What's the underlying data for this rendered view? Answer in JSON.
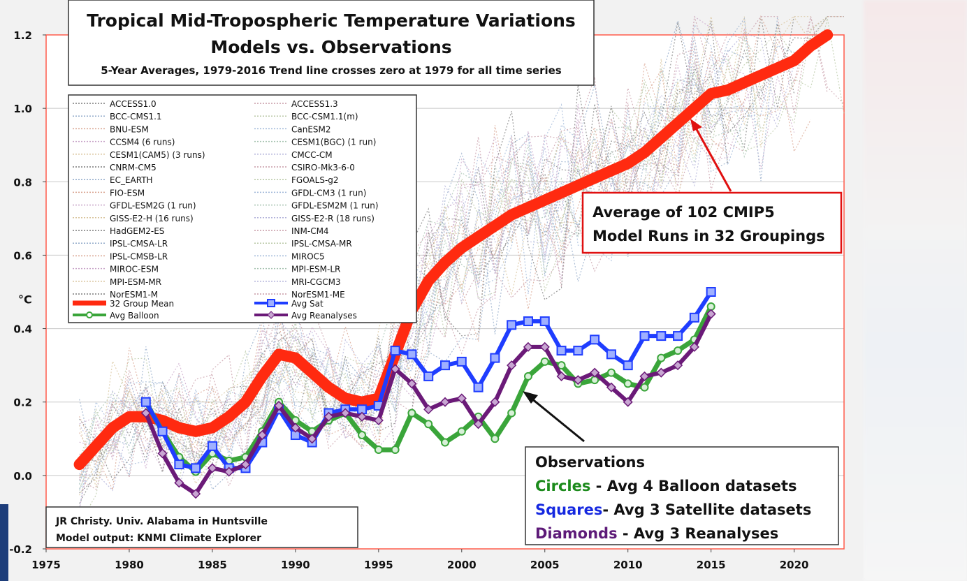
{
  "chart_data": {
    "type": "line",
    "title": "Tropical Mid-Tropospheric Temperature Variations",
    "subtitle": "Models vs. Observations",
    "note": "5-Year Averages, 1979-2016 Trend line crosses zero at 1979 for all time series",
    "ylabel": "°C",
    "xlim": [
      1975,
      2023
    ],
    "ylim": [
      -0.2,
      1.2
    ],
    "x_ticks": [
      1975,
      1980,
      1985,
      1990,
      1995,
      2000,
      2005,
      2010,
      2015,
      2020
    ],
    "y_ticks": [
      -0.2,
      0.0,
      0.2,
      0.4,
      0.6,
      0.8,
      1.0,
      1.2
    ],
    "y_tick_labels": [
      "-0.2",
      "0.0",
      "0.2",
      "0.4",
      "0.6",
      "0.8",
      "1.0",
      "1.2"
    ],
    "grid": true,
    "legend_models": [
      "ACCESS1.0",
      "ACCESS1.3",
      "BCC-CMS1.1",
      "BCC-CSM1.1(m)",
      "BNU-ESM",
      "CanESM2",
      "CCSM4 (6 runs)",
      "CESM1(BGC) (1 run)",
      "CESM1(CAM5) (3 runs)",
      "CMCC-CM",
      "CNRM-CM5",
      "CSIRO-Mk3-6-0",
      "EC_EARTH",
      "FGOALS-g2",
      "FIO-ESM",
      "GFDL-CM3 (1 run)",
      "GFDL-ESM2G (1 run)",
      "GFDL-ESM2M (1 run)",
      "GISS-E2-H (16 runs)",
      "GISS-E2-R (18 runs)",
      "HadGEM2-ES",
      "INM-CM4",
      "IPSL-CMSA-LR",
      "IPSL-CMSA-MR",
      "IPSL-CMSB-LR",
      "MIROC5",
      "MIROC-ESM",
      "MPI-ESM-LR",
      "MPI-ESM-MR",
      "MRI-CGCM3",
      "NorESM1-M",
      "NorESM1-ME"
    ],
    "model_colors": [
      "#7a7a7a",
      "#c79aa6",
      "#8fa8c8",
      "#b8c7a4",
      "#d9a38f",
      "#9fb7d9",
      "#c9a5c9",
      "#a8c4b2",
      "#d8c39a",
      "#b1b1d9"
    ],
    "series": [
      {
        "name": "32 Group Mean",
        "color": "#ff2a10",
        "marker": "none",
        "x": [
          1977,
          1978,
          1979,
          1980,
          1981,
          1982,
          1983,
          1984,
          1985,
          1986,
          1987,
          1988,
          1989,
          1990,
          1991,
          1992,
          1993,
          1994,
          1995,
          1996,
          1997,
          1998,
          1999,
          2000,
          2001,
          2002,
          2003,
          2004,
          2005,
          2006,
          2007,
          2008,
          2009,
          2010,
          2011,
          2012,
          2013,
          2014,
          2015,
          2016,
          2017,
          2018,
          2019,
          2020,
          2021,
          2022
        ],
        "values": [
          0.03,
          0.08,
          0.13,
          0.16,
          0.16,
          0.15,
          0.13,
          0.12,
          0.13,
          0.16,
          0.2,
          0.27,
          0.33,
          0.32,
          0.28,
          0.24,
          0.21,
          0.2,
          0.21,
          0.33,
          0.45,
          0.53,
          0.58,
          0.62,
          0.65,
          0.68,
          0.71,
          0.73,
          0.75,
          0.77,
          0.79,
          0.81,
          0.83,
          0.85,
          0.88,
          0.92,
          0.96,
          1.0,
          1.04,
          1.05,
          1.07,
          1.09,
          1.11,
          1.13,
          1.17,
          1.2
        ]
      },
      {
        "name": "Avg Balloon",
        "color": "#3aa53a",
        "marker": "circle",
        "x": [
          1981,
          1982,
          1983,
          1984,
          1985,
          1986,
          1987,
          1988,
          1989,
          1990,
          1991,
          1992,
          1993,
          1994,
          1995,
          1996,
          1997,
          1998,
          1999,
          2000,
          2001,
          2002,
          2003,
          2004,
          2005,
          2006,
          2007,
          2008,
          2009,
          2010,
          2011,
          2012,
          2013,
          2014,
          2015
        ],
        "values": [
          0.2,
          0.12,
          0.05,
          0.01,
          0.06,
          0.04,
          0.05,
          0.12,
          0.2,
          0.15,
          0.12,
          0.15,
          0.17,
          0.11,
          0.07,
          0.07,
          0.17,
          0.14,
          0.09,
          0.12,
          0.16,
          0.1,
          0.17,
          0.27,
          0.31,
          0.3,
          0.25,
          0.26,
          0.28,
          0.25,
          0.24,
          0.32,
          0.34,
          0.37,
          0.46
        ]
      },
      {
        "name": "Avg Sat",
        "color": "#1f3dff",
        "marker": "square",
        "x": [
          1981,
          1982,
          1983,
          1984,
          1985,
          1986,
          1987,
          1988,
          1989,
          1990,
          1991,
          1992,
          1993,
          1994,
          1995,
          1996,
          1997,
          1998,
          1999,
          2000,
          2001,
          2002,
          2003,
          2004,
          2005,
          2006,
          2007,
          2008,
          2009,
          2010,
          2011,
          2012,
          2013,
          2014,
          2015
        ],
        "values": [
          0.2,
          0.12,
          0.03,
          0.02,
          0.08,
          0.02,
          0.02,
          0.09,
          0.18,
          0.11,
          0.09,
          0.17,
          0.18,
          0.18,
          0.19,
          0.34,
          0.33,
          0.27,
          0.3,
          0.31,
          0.24,
          0.32,
          0.41,
          0.42,
          0.42,
          0.34,
          0.34,
          0.37,
          0.33,
          0.3,
          0.38,
          0.38,
          0.38,
          0.43,
          0.5
        ]
      },
      {
        "name": "Avg Reanalyses",
        "color": "#6b1a78",
        "marker": "diamond",
        "x": [
          1981,
          1982,
          1983,
          1984,
          1985,
          1986,
          1987,
          1988,
          1989,
          1990,
          1991,
          1992,
          1993,
          1994,
          1995,
          1996,
          1997,
          1998,
          1999,
          2000,
          2001,
          2002,
          2003,
          2004,
          2005,
          2006,
          2007,
          2008,
          2009,
          2010,
          2011,
          2012,
          2013,
          2014,
          2015
        ],
        "values": [
          0.17,
          0.06,
          -0.02,
          -0.05,
          0.02,
          0.01,
          0.03,
          0.11,
          0.19,
          0.13,
          0.1,
          0.16,
          0.17,
          0.16,
          0.15,
          0.29,
          0.25,
          0.18,
          0.2,
          0.21,
          0.14,
          0.2,
          0.3,
          0.35,
          0.35,
          0.27,
          0.26,
          0.28,
          0.24,
          0.2,
          0.27,
          0.28,
          0.3,
          0.35,
          0.44
        ]
      }
    ],
    "annotation_model": [
      "Average of 102 CMIP5",
      "Model Runs in 32 Groupings"
    ],
    "obs_box": {
      "header": "Observations",
      "lines": [
        {
          "key": "Circles",
          "rest": " - Avg 4 Balloon datasets",
          "color": "#1b8a1b"
        },
        {
          "key": "Squares",
          "rest": "- Avg 3 Satellite datasets",
          "color": "#1528e0"
        },
        {
          "key": "Diamonds",
          "rest": " - Avg 3 Reanalyses",
          "color": "#5d1a78"
        }
      ]
    },
    "credit": [
      "JR Christy. Univ. Alabama in Huntsville",
      "Model output: KNMI Climate Explorer"
    ],
    "model_spaghetti_seed": 7
  }
}
